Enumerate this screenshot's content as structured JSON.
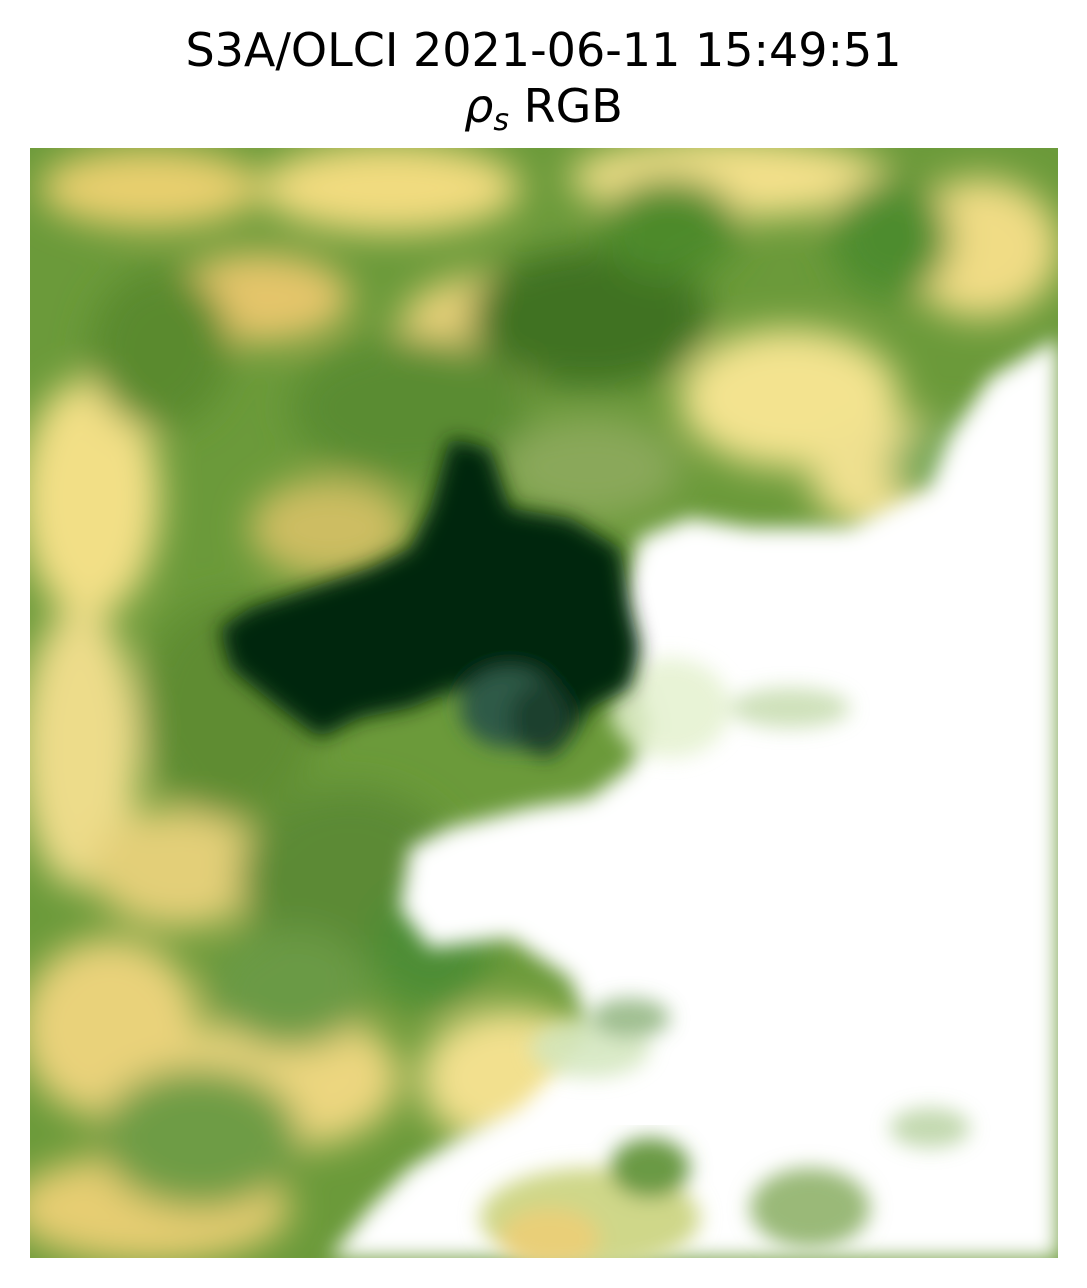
{
  "title": {
    "line1": "S3A/OLCI 2021-06-11 15:49:51",
    "symbol": "ρ",
    "symbol_sub": "s",
    "line2_suffix": " RGB"
  },
  "image": {
    "palette": {
      "dark_water": "#022710",
      "dark_green": "#4f7a28",
      "green": "#6b9a3a",
      "light_green": "#a6c46a",
      "yellow": "#efd574",
      "pale_yellow": "#f6eaa6",
      "pale_green": "#d8ecc8",
      "cloud": "#ffffff"
    }
  }
}
